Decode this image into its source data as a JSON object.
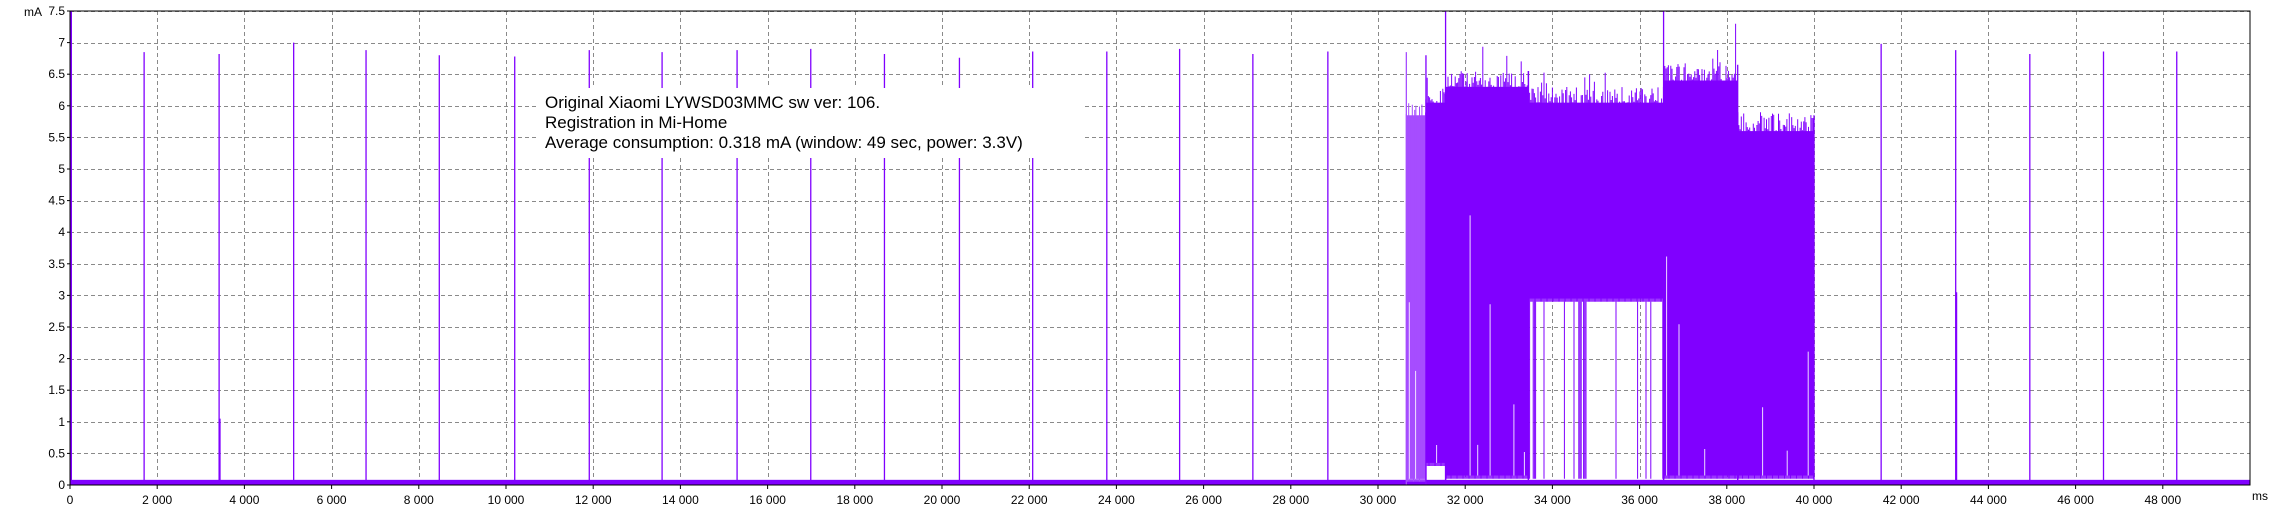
{
  "chart_data": {
    "type": "line",
    "title": "",
    "y_unit": "mA",
    "x_unit": "ms",
    "xlim": [
      0,
      50000
    ],
    "ylim": [
      0,
      7.5
    ],
    "grid": true,
    "legend": "none",
    "x_ticks": [
      0,
      2000,
      4000,
      6000,
      8000,
      10000,
      12000,
      14000,
      16000,
      18000,
      20000,
      22000,
      24000,
      26000,
      28000,
      30000,
      32000,
      34000,
      36000,
      38000,
      40000,
      42000,
      44000,
      46000,
      48000
    ],
    "x_tick_labels": [
      "0",
      "2 000",
      "4 000",
      "6 000",
      "8 000",
      "10 000",
      "12 000",
      "14 000",
      "16 000",
      "18 000",
      "20 000",
      "22 000",
      "24 000",
      "26 000",
      "28 000",
      "30 000",
      "32 000",
      "34 000",
      "36 000",
      "38 000",
      "40 000",
      "42 000",
      "44 000",
      "46 000",
      "48 000"
    ],
    "y_ticks": [
      0,
      0.5,
      1,
      1.5,
      2,
      2.5,
      3,
      3.5,
      4,
      4.5,
      5,
      5.5,
      6,
      6.5,
      7,
      7.5
    ],
    "y_tick_labels": [
      "0",
      "0.5",
      "1",
      "1.5",
      "2",
      "2.5",
      "3",
      "3.5",
      "4",
      "4.5",
      "5",
      "5.5",
      "6",
      "6.5",
      "7",
      "7.5"
    ],
    "annotation": [
      "Original Xiaomi LYWSD03MMC sw ver: 106.",
      "Registration in Mi-Home",
      "Average consumption: 0.318 mA (window: 49 sec, power: 3.3V)"
    ],
    "series_color": "#8000ff",
    "baseline_current": 0.05,
    "spikes": [
      {
        "x": 1700,
        "y": 6.85
      },
      {
        "x": 3420,
        "y": 6.82
      },
      {
        "x": 3440,
        "y": 1.05
      },
      {
        "x": 5130,
        "y": 7.0
      },
      {
        "x": 6790,
        "y": 6.88
      },
      {
        "x": 8470,
        "y": 6.8
      },
      {
        "x": 10200,
        "y": 6.78
      },
      {
        "x": 11910,
        "y": 6.88
      },
      {
        "x": 13580,
        "y": 6.85
      },
      {
        "x": 15300,
        "y": 6.88
      },
      {
        "x": 16990,
        "y": 6.9
      },
      {
        "x": 18680,
        "y": 6.82
      },
      {
        "x": 20400,
        "y": 6.76
      },
      {
        "x": 22080,
        "y": 6.86
      },
      {
        "x": 23780,
        "y": 6.86
      },
      {
        "x": 25450,
        "y": 6.9
      },
      {
        "x": 27130,
        "y": 6.82
      },
      {
        "x": 28850,
        "y": 6.86
      },
      {
        "x": 41540,
        "y": 6.98
      },
      {
        "x": 43250,
        "y": 6.88
      },
      {
        "x": 43270,
        "y": 3.05
      },
      {
        "x": 44950,
        "y": 6.82
      },
      {
        "x": 46640,
        "y": 6.86
      },
      {
        "x": 48320,
        "y": 6.86
      }
    ],
    "bursts": [
      {
        "x_start": 30650,
        "x_end": 31100,
        "low": 0.05,
        "high": 6.1,
        "peak": 6.85,
        "color": "#a64dff"
      },
      {
        "x_start": 31100,
        "x_end": 31550,
        "low": 0.3,
        "high": 6.3,
        "peak": 6.8
      },
      {
        "x_start": 31550,
        "x_end": 33450,
        "low": 0.1,
        "high": 6.55,
        "peak": 7.5
      },
      {
        "x_start": 33450,
        "x_end": 36550,
        "low": 2.9,
        "high": 6.3,
        "peak": 6.55
      },
      {
        "x_start": 36550,
        "x_end": 38250,
        "low": 0.1,
        "high": 6.65,
        "peak": 7.5
      },
      {
        "x_start": 38250,
        "x_end": 40000,
        "low": 0.1,
        "high": 5.85,
        "peak": 5.9
      }
    ]
  }
}
